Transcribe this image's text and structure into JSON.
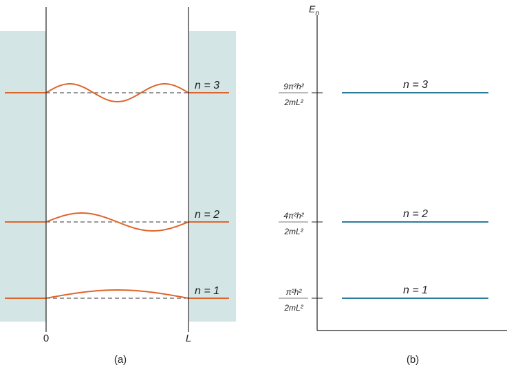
{
  "panel_a": {
    "caption": "(a)",
    "x_labels": {
      "zero": "0",
      "L": "L"
    },
    "levels": [
      {
        "n": 3,
        "label": "n = 3"
      },
      {
        "n": 2,
        "label": "n = 2"
      },
      {
        "n": 1,
        "label": "n = 1"
      }
    ]
  },
  "panel_b": {
    "caption": "(b)",
    "axis_label": "E",
    "axis_subscript": "n",
    "levels": [
      {
        "n": 3,
        "label": "n = 3",
        "num": "9π²h²",
        "den": "2mL²"
      },
      {
        "n": 2,
        "label": "n = 2",
        "num": "4π²h²",
        "den": "2mL²"
      },
      {
        "n": 1,
        "label": "n = 1",
        "num": "π²h²",
        "den": "2mL²"
      }
    ]
  },
  "colors": {
    "wave": "#e0642a",
    "level": "#2a7c99",
    "wall": "#d3e6e5",
    "axis": "#222222"
  }
}
